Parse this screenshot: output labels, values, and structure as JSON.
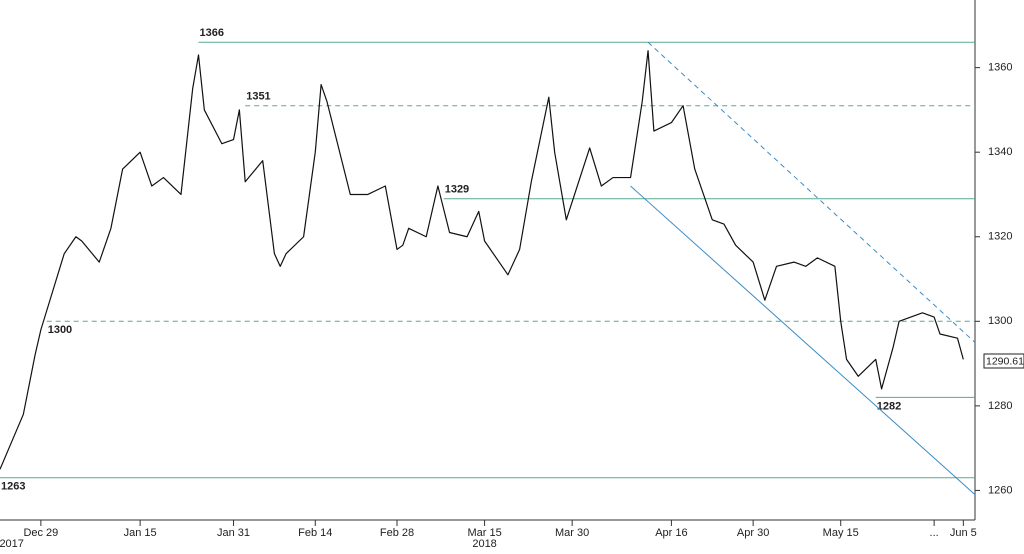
{
  "chart_data": {
    "type": "line",
    "x": [
      "2017-12-22",
      "2017-12-26",
      "2017-12-28",
      "2017-12-29",
      "2018-01-02",
      "2018-01-04",
      "2018-01-05",
      "2018-01-08",
      "2018-01-10",
      "2018-01-12",
      "2018-01-15",
      "2018-01-17",
      "2018-01-19",
      "2018-01-22",
      "2018-01-24",
      "2018-01-25",
      "2018-01-26",
      "2018-01-29",
      "2018-01-31",
      "2018-02-01",
      "2018-02-02",
      "2018-02-05",
      "2018-02-07",
      "2018-02-08",
      "2018-02-09",
      "2018-02-12",
      "2018-02-14",
      "2018-02-15",
      "2018-02-16",
      "2018-02-20",
      "2018-02-22",
      "2018-02-23",
      "2018-02-26",
      "2018-02-28",
      "2018-03-01",
      "2018-03-02",
      "2018-03-05",
      "2018-03-07",
      "2018-03-09",
      "2018-03-12",
      "2018-03-14",
      "2018-03-15",
      "2018-03-19",
      "2018-03-21",
      "2018-03-23",
      "2018-03-26",
      "2018-03-27",
      "2018-03-29",
      "2018-04-02",
      "2018-04-04",
      "2018-04-06",
      "2018-04-09",
      "2018-04-11",
      "2018-04-12",
      "2018-04-13",
      "2018-04-16",
      "2018-04-18",
      "2018-04-20",
      "2018-04-23",
      "2018-04-25",
      "2018-04-27",
      "2018-04-30",
      "2018-05-02",
      "2018-05-04",
      "2018-05-07",
      "2018-05-09",
      "2018-05-11",
      "2018-05-14",
      "2018-05-15",
      "2018-05-16",
      "2018-05-18",
      "2018-05-21",
      "2018-05-22",
      "2018-05-24",
      "2018-05-25",
      "2018-05-29",
      "2018-05-31",
      "2018-06-01",
      "2018-06-04",
      "2018-06-05"
    ],
    "series": [
      {
        "color": "#111111",
        "values": [
          1265,
          1278,
          1292,
          1298,
          1316,
          1320,
          1319,
          1314,
          1322,
          1336,
          1340,
          1332,
          1334,
          1330,
          1355,
          1363,
          1350,
          1342,
          1343,
          1350,
          1333,
          1338,
          1316,
          1313,
          1316,
          1320,
          1340,
          1356,
          1352,
          1330,
          1330,
          1330,
          1332,
          1317,
          1318,
          1322,
          1320,
          1332,
          1321,
          1320,
          1326,
          1319,
          1311,
          1317,
          1333,
          1353,
          1340,
          1324,
          1341,
          1332,
          1334,
          1334,
          1352,
          1364,
          1345,
          1347,
          1351,
          1336,
          1324,
          1323,
          1318,
          1314,
          1305,
          1313,
          1314,
          1313,
          1315,
          1313,
          1300,
          1291,
          1287,
          1291,
          1284,
          1294,
          1300,
          1302,
          1301,
          1297,
          1296,
          1291
        ]
      }
    ],
    "xlim": [
      "2017-12-22",
      "2018-06-07"
    ],
    "xticks": [
      {
        "value": "2017-12-29",
        "label": "Dec 29"
      },
      {
        "value": "2018-01-15",
        "label": "Jan 15"
      },
      {
        "value": "2018-01-31",
        "label": "Jan 31"
      },
      {
        "value": "2018-02-14",
        "label": "Feb 14"
      },
      {
        "value": "2018-02-28",
        "label": "Feb 28"
      },
      {
        "value": "2018-03-15",
        "label": "Mar 15"
      },
      {
        "value": "2018-03-30",
        "label": "Mar 30"
      },
      {
        "value": "2018-04-16",
        "label": "Apr 16"
      },
      {
        "value": "2018-04-30",
        "label": "Apr 30"
      },
      {
        "value": "2018-05-15",
        "label": "May 15"
      },
      {
        "value": "2018-05-31",
        "label": "..."
      },
      {
        "value": "2018-06-05",
        "label": "Jun 5"
      }
    ],
    "year_labels": [
      {
        "value": "2017-12-24",
        "label": "2017"
      },
      {
        "value": "2018-03-15",
        "label": "2018"
      }
    ],
    "ylim": [
      1253,
      1376
    ],
    "yticks": [
      1260,
      1280,
      1300,
      1320,
      1340,
      1360
    ],
    "levels": [
      {
        "value": 1366,
        "start": "2018-01-25",
        "style": "solid",
        "label_position": "above"
      },
      {
        "value": 1351,
        "start": "2018-02-02",
        "style": "dashed",
        "label_position": "above"
      },
      {
        "value": 1329,
        "start": "2018-03-08",
        "style": "solid",
        "label_position": "above"
      },
      {
        "value": 1300,
        "start": "2017-12-30",
        "style": "dashed",
        "label_position": "below"
      },
      {
        "value": 1282,
        "start": "2018-05-21",
        "style": "solid",
        "label_position": "below"
      },
      {
        "value": 1263,
        "start": "2017-12-22",
        "style": "solid",
        "label_position": "below"
      }
    ],
    "level_color": "#5aa88f",
    "trendlines": [
      {
        "x": [
          "2018-04-09",
          "2018-06-07"
        ],
        "values": [
          1332,
          1259
        ],
        "style": "solid"
      },
      {
        "x": [
          "2018-04-12",
          "2018-06-07"
        ],
        "values": [
          1366,
          1295
        ],
        "style": "dashed"
      }
    ],
    "trend_color": "#3d8cc4",
    "last_price": 1290.61
  }
}
